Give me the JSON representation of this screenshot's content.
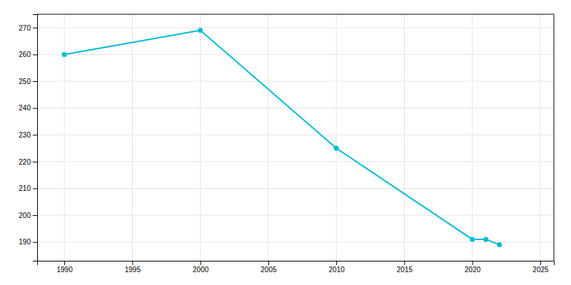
{
  "chart_data": {
    "type": "line",
    "x": [
      1990,
      2000,
      2010,
      2020,
      2021,
      2022
    ],
    "values": [
      260,
      269,
      225,
      191,
      191,
      189
    ],
    "color": "#00bcd4",
    "marker": "circle",
    "xlim": [
      1988,
      2026
    ],
    "ylim": [
      183,
      275
    ],
    "xticks": [
      1990,
      1995,
      2000,
      2005,
      2010,
      2015,
      2020,
      2025
    ],
    "yticks": [
      190,
      200,
      210,
      220,
      230,
      240,
      250,
      260,
      270
    ],
    "grid": true
  }
}
